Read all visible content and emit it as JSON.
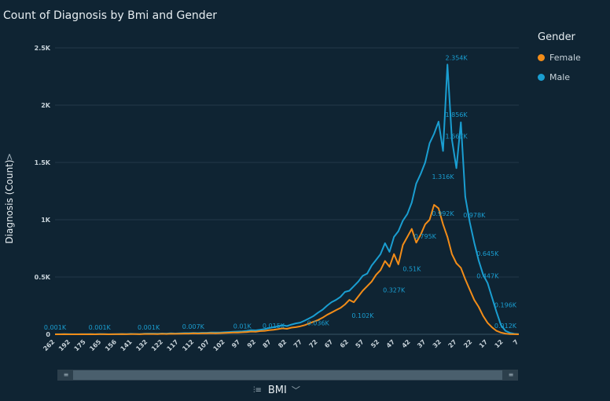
{
  "title": "Count of Diagnosis by Bmi and Gender",
  "legend": {
    "title": "Gender",
    "items": [
      {
        "label": "Female",
        "color": "#f28c18"
      },
      {
        "label": "Male",
        "color": "#1a9ed1"
      }
    ]
  },
  "axis": {
    "ylabel": "Diagnosis (Count)",
    "xlabel": "BMI",
    "x_icon": "hierarchy-icon",
    "x_chevron": "chevron-down-icon",
    "y_chevron": "chevron-right-icon"
  },
  "chart_data": {
    "type": "line",
    "title": "Count of Diagnosis by Bmi and Gender",
    "xlabel": "BMI",
    "ylabel": "Diagnosis (Count)",
    "ylim": [
      0,
      2500
    ],
    "yticks": [
      {
        "v": 0,
        "label": "0"
      },
      {
        "v": 500,
        "label": "0.5K"
      },
      {
        "v": 1000,
        "label": "1K"
      },
      {
        "v": 1500,
        "label": "1.5K"
      },
      {
        "v": 2000,
        "label": "2K"
      },
      {
        "v": 2500,
        "label": "2.5K"
      }
    ],
    "x_ticks": [
      "262",
      "192",
      "175",
      "165",
      "156",
      "141",
      "132",
      "122",
      "117",
      "112",
      "107",
      "102",
      "97",
      "92",
      "87",
      "82",
      "77",
      "72",
      "67",
      "62",
      "57",
      "52",
      "47",
      "42",
      "37",
      "32",
      "27",
      "22",
      "17",
      "12",
      "7"
    ],
    "grid": true,
    "legend_position": "top-right",
    "series": [
      {
        "name": "Male",
        "color": "#1a9ed1",
        "values": [
          1,
          1,
          2,
          2,
          1,
          1,
          1,
          2,
          2,
          1,
          3,
          2,
          1,
          1,
          2,
          3,
          2,
          4,
          3,
          2,
          5,
          6,
          6,
          5,
          7,
          6,
          8,
          7,
          9,
          10,
          10,
          12,
          11,
          13,
          13,
          15,
          15,
          16,
          18,
          20,
          22,
          24,
          26,
          30,
          36,
          34,
          40,
          45,
          55,
          62,
          70,
          80,
          72,
          85,
          95,
          102,
          120,
          140,
          160,
          190,
          215,
          250,
          280,
          300,
          327,
          370,
          380,
          420,
          460,
          510,
          530,
          600,
          650,
          700,
          795,
          720,
          850,
          900,
          992,
          1050,
          1150,
          1316,
          1400,
          1500,
          1667,
          1750,
          1856,
          1600,
          2354,
          1700,
          1450,
          1850,
          1200,
          978,
          800,
          645,
          520,
          447,
          320,
          196,
          80,
          30,
          12,
          4,
          2
        ]
      },
      {
        "name": "Female",
        "color": "#f28c18",
        "values": [
          0,
          0,
          1,
          0,
          0,
          0,
          1,
          0,
          1,
          0,
          1,
          1,
          0,
          1,
          1,
          2,
          1,
          2,
          2,
          1,
          3,
          3,
          3,
          2,
          4,
          3,
          5,
          4,
          5,
          6,
          6,
          8,
          7,
          9,
          8,
          10,
          9,
          10,
          12,
          14,
          15,
          16,
          18,
          20,
          24,
          22,
          28,
          30,
          36,
          40,
          45,
          52,
          48,
          58,
          62,
          70,
          80,
          95,
          110,
          125,
          145,
          170,
          190,
          210,
          230,
          260,
          300,
          280,
          330,
          380,
          420,
          460,
          520,
          560,
          640,
          590,
          700,
          610,
          780,
          850,
          920,
          800,
          870,
          960,
          1000,
          1130,
          1100,
          960,
          850,
          700,
          620,
          580,
          480,
          390,
          300,
          240,
          160,
          100,
          60,
          30,
          15,
          6,
          2,
          1,
          0
        ]
      }
    ],
    "data_labels": [
      {
        "text": "0.001K",
        "series": "Male",
        "tick": "262"
      },
      {
        "text": "0.001K",
        "series": "Male",
        "tick": "165"
      },
      {
        "text": "0.001K",
        "series": "Male",
        "tick": "132"
      },
      {
        "text": "0.007K",
        "series": "Male",
        "tick": "112"
      },
      {
        "text": "0.01K",
        "series": "Male",
        "tick": "97"
      },
      {
        "text": "0.015K",
        "series": "Male",
        "tick": "87"
      },
      {
        "text": "0.036K",
        "series": "Male",
        "tick": "72"
      },
      {
        "text": "0.102K",
        "series": "Male",
        "tick": "57"
      },
      {
        "text": "0.327K",
        "series": "Male",
        "tick": "47"
      },
      {
        "text": "0.51K",
        "series": "Male",
        "tick": "42"
      },
      {
        "text": "0.795K",
        "series": "Male",
        "tick": "37"
      },
      {
        "text": "0.992K",
        "series": "Male",
        "tick": "32"
      },
      {
        "text": "1.316K",
        "series": "Male",
        "tick": "32"
      },
      {
        "text": "1.667K",
        "series": "Male",
        "tick": "27"
      },
      {
        "text": "1.856K",
        "series": "Male",
        "tick": "27"
      },
      {
        "text": "2.354K",
        "series": "Male",
        "tick": "27"
      },
      {
        "text": "0.978K",
        "series": "Male",
        "tick": "22"
      },
      {
        "text": "0.645K",
        "series": "Male",
        "tick": "17"
      },
      {
        "text": "0.447K",
        "series": "Male",
        "tick": "17"
      },
      {
        "text": "0.196K",
        "series": "Male",
        "tick": "12"
      },
      {
        "text": "0.012K",
        "series": "Male",
        "tick": "12"
      }
    ]
  }
}
